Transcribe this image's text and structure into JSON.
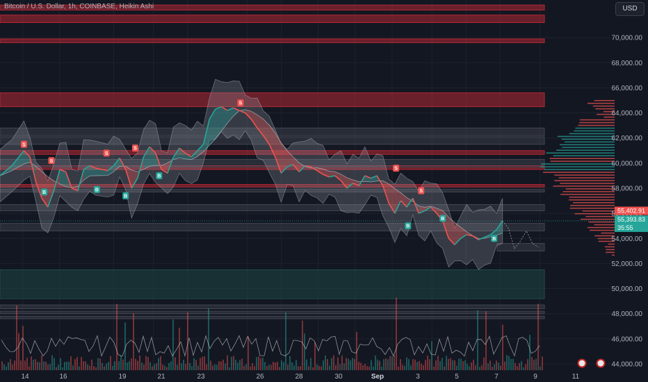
{
  "header": {
    "title": "Bitcoin / U.S. Dollar, 1h, COINBASE, Heikin Ashi",
    "currency_button": "USD"
  },
  "colors": {
    "background": "#131722",
    "grid": "#1e222d",
    "bull": "#26a69a",
    "bear": "#ef5350",
    "zone_red": "#b22833",
    "zone_gray": "#434651",
    "zone_green": "#1f4e4a",
    "band": "#9598a1"
  },
  "chart_data": {
    "type": "line",
    "y_axis": {
      "min": 43500,
      "max": 73000,
      "ticks": [
        44000,
        46000,
        48000,
        50000,
        52000,
        54000,
        56000,
        58000,
        60000,
        62000,
        64000,
        66000,
        68000,
        70000
      ],
      "tick_labels": [
        "44,000.00",
        "46,000.00",
        "48,000.00",
        "50,000.00",
        "52,000.00",
        "54,000.00",
        "56,000.00",
        "58,000.00",
        "60,000.00",
        "62,000.00",
        "64,000.00",
        "66,000.00",
        "68,000.00",
        "70,000.00"
      ]
    },
    "x_axis": {
      "ticks": [
        {
          "label": "14",
          "bold": false
        },
        {
          "label": "16",
          "bold": false
        },
        {
          "label": "19",
          "bold": false
        },
        {
          "label": "21",
          "bold": false
        },
        {
          "label": "23",
          "bold": false
        },
        {
          "label": "26",
          "bold": false
        },
        {
          "label": "28",
          "bold": false
        },
        {
          "label": "30",
          "bold": false
        },
        {
          "label": "Sep",
          "bold": true
        },
        {
          "label": "3",
          "bold": false
        },
        {
          "label": "5",
          "bold": false
        },
        {
          "label": "7",
          "bold": false
        },
        {
          "label": "9",
          "bold": false
        },
        {
          "label": "11",
          "bold": false
        }
      ]
    },
    "price_series": [
      {
        "t": 0,
        "p": 59000
      },
      {
        "t": 2,
        "p": 59800
      },
      {
        "t": 4,
        "p": 61000
      },
      {
        "t": 5,
        "p": 60500
      },
      {
        "t": 6,
        "p": 58500
      },
      {
        "t": 7,
        "p": 57200
      },
      {
        "t": 8,
        "p": 56500
      },
      {
        "t": 9,
        "p": 57800
      },
      {
        "t": 10,
        "p": 59500
      },
      {
        "t": 11,
        "p": 59300
      },
      {
        "t": 12,
        "p": 58000
      },
      {
        "t": 13,
        "p": 57800
      },
      {
        "t": 14,
        "p": 59500
      },
      {
        "t": 15,
        "p": 59800
      },
      {
        "t": 16,
        "p": 59600
      },
      {
        "t": 18,
        "p": 59400
      },
      {
        "t": 19,
        "p": 59800
      },
      {
        "t": 20,
        "p": 60400
      },
      {
        "t": 21,
        "p": 59500
      },
      {
        "t": 22,
        "p": 58000
      },
      {
        "t": 23,
        "p": 58800
      },
      {
        "t": 24,
        "p": 60500
      },
      {
        "t": 25,
        "p": 61300
      },
      {
        "t": 26,
        "p": 60800
      },
      {
        "t": 27,
        "p": 59500
      },
      {
        "t": 28,
        "p": 59200
      },
      {
        "t": 29,
        "p": 60500
      },
      {
        "t": 30,
        "p": 61200
      },
      {
        "t": 31,
        "p": 60800
      },
      {
        "t": 32,
        "p": 60500
      },
      {
        "t": 33,
        "p": 61000
      },
      {
        "t": 34,
        "p": 61500
      },
      {
        "t": 35,
        "p": 63500
      },
      {
        "t": 36,
        "p": 64300
      },
      {
        "t": 37,
        "p": 64500
      },
      {
        "t": 38,
        "p": 64200
      },
      {
        "t": 39,
        "p": 64400
      },
      {
        "t": 40,
        "p": 64200
      },
      {
        "t": 41,
        "p": 64000
      },
      {
        "t": 42,
        "p": 63500
      },
      {
        "t": 43,
        "p": 62800
      },
      {
        "t": 44,
        "p": 62200
      },
      {
        "t": 45,
        "p": 61500
      },
      {
        "t": 46,
        "p": 60500
      },
      {
        "t": 47,
        "p": 59200
      },
      {
        "t": 48,
        "p": 59700
      },
      {
        "t": 49,
        "p": 59900
      },
      {
        "t": 50,
        "p": 59300
      },
      {
        "t": 51,
        "p": 59800
      },
      {
        "t": 52,
        "p": 59700
      },
      {
        "t": 53,
        "p": 59400
      },
      {
        "t": 54,
        "p": 59100
      },
      {
        "t": 55,
        "p": 58900
      },
      {
        "t": 56,
        "p": 59000
      },
      {
        "t": 57,
        "p": 58600
      },
      {
        "t": 58,
        "p": 58000
      },
      {
        "t": 59,
        "p": 58400
      },
      {
        "t": 60,
        "p": 58200
      },
      {
        "t": 61,
        "p": 59000
      },
      {
        "t": 62,
        "p": 58800
      },
      {
        "t": 63,
        "p": 59000
      },
      {
        "t": 64,
        "p": 58200
      },
      {
        "t": 65,
        "p": 56800
      },
      {
        "t": 66,
        "p": 56000
      },
      {
        "t": 67,
        "p": 57000
      },
      {
        "t": 68,
        "p": 56500
      },
      {
        "t": 69,
        "p": 57200
      },
      {
        "t": 70,
        "p": 56000
      },
      {
        "t": 71,
        "p": 56200
      },
      {
        "t": 72,
        "p": 56500
      },
      {
        "t": 73,
        "p": 56000
      },
      {
        "t": 74,
        "p": 55400
      },
      {
        "t": 75,
        "p": 54000
      },
      {
        "t": 76,
        "p": 53500
      },
      {
        "t": 77,
        "p": 54000
      },
      {
        "t": 78,
        "p": 54300
      },
      {
        "t": 79,
        "p": 54200
      },
      {
        "t": 80,
        "p": 53900
      },
      {
        "t": 81,
        "p": 54100
      },
      {
        "t": 82,
        "p": 54300
      },
      {
        "t": 83,
        "p": 54700
      },
      {
        "t": 84,
        "p": 55400
      }
    ],
    "forecast_series": [
      {
        "t": 84,
        "p": 55400
      },
      {
        "t": 85,
        "p": 54800
      },
      {
        "t": 86,
        "p": 53200
      },
      {
        "t": 87,
        "p": 53800
      },
      {
        "t": 88,
        "p": 54600
      },
      {
        "t": 89,
        "p": 53600
      },
      {
        "t": 90,
        "p": 53300
      }
    ],
    "signals": [
      {
        "type": "S",
        "t": 4,
        "p": 61500
      },
      {
        "type": "B",
        "t": 7.4,
        "p": 57700
      },
      {
        "type": "S",
        "t": 8.6,
        "p": 60200
      },
      {
        "type": "B",
        "t": 16.2,
        "p": 57900
      },
      {
        "type": "S",
        "t": 17.8,
        "p": 60800
      },
      {
        "type": "B",
        "t": 21.0,
        "p": 57400
      },
      {
        "type": "S",
        "t": 22.6,
        "p": 61200
      },
      {
        "type": "B",
        "t": 26.6,
        "p": 59000
      },
      {
        "type": "S",
        "t": 40.2,
        "p": 64800
      },
      {
        "type": "S",
        "t": 66.2,
        "p": 59600
      },
      {
        "type": "B",
        "t": 68.2,
        "p": 55000
      },
      {
        "type": "S",
        "t": 70.4,
        "p": 57800
      },
      {
        "type": "B",
        "t": 74.0,
        "p": 55600
      },
      {
        "type": "B",
        "t": 82.6,
        "p": 54000
      }
    ],
    "price_tags": [
      {
        "label": "55,402.91",
        "color": "#ef5350",
        "p": 56200
      },
      {
        "label": "55,393.83",
        "color": "#26a69a",
        "p": 55500
      },
      {
        "label": "35:55",
        "color": "#26a69a",
        "p": 54850
      }
    ],
    "grid": true,
    "legend": "none"
  }
}
